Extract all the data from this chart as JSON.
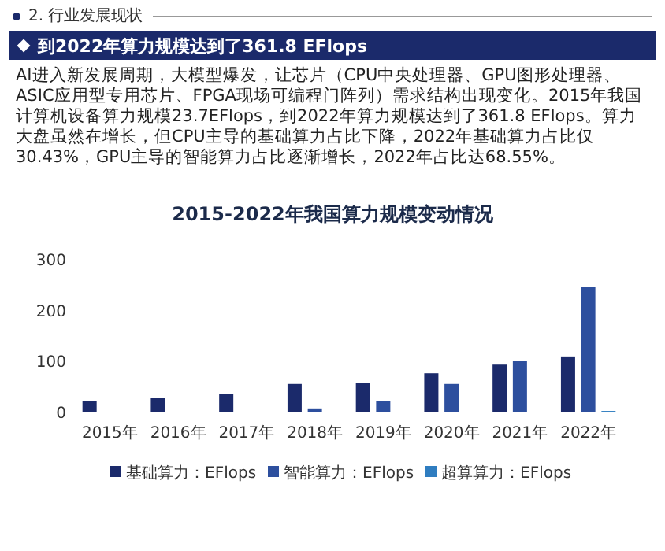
{
  "chart_data": {
    "type": "bar",
    "title": "2015-2022年我国算力规模变动情况",
    "annotations": [
      "2. 行业发展现状",
      "到2022年算力规模达到了361.8 EFlops",
      "AI进入新发展周期，大模型爆发，让芯片（CPU中央处理器、GPU图形处理器、ASIC应用型专用芯片、FPGA现场可编程门阵列）需求结构出现变化。2015年我国计算机设备算力规模23.7EFlops，到2022年算力规模达到了361.8 EFlops。算力大盘虽然在增长，但CPU主导的基础算力占比下降，2022年基础算力占比仅30.43%，GPU主导的智能算力占比逐渐增长，2022年占比达68.55%。"
    ],
    "categories": [
      "2015年",
      "2016年",
      "2017年",
      "2018年",
      "2019年",
      "2020年",
      "2021年",
      "2022年"
    ],
    "series": [
      {
        "name": "基础算力：EFlops",
        "color": "#1b2a6b",
        "values": [
          23,
          28,
          37,
          56,
          58,
          77,
          94,
          110
        ]
      },
      {
        "name": "智能算力：EFlops",
        "color": "#2d4f9e",
        "values": [
          1,
          1,
          1,
          8,
          23,
          56,
          102,
          247
        ]
      },
      {
        "name": "超算算力：EFlops",
        "color": "#2f7dc0",
        "values": [
          1,
          1,
          1,
          1,
          1,
          1,
          1,
          3
        ]
      }
    ],
    "ylim": [
      0,
      300
    ],
    "yticks": [
      0,
      100,
      200,
      300
    ],
    "grid": false,
    "legend": "bottom"
  }
}
